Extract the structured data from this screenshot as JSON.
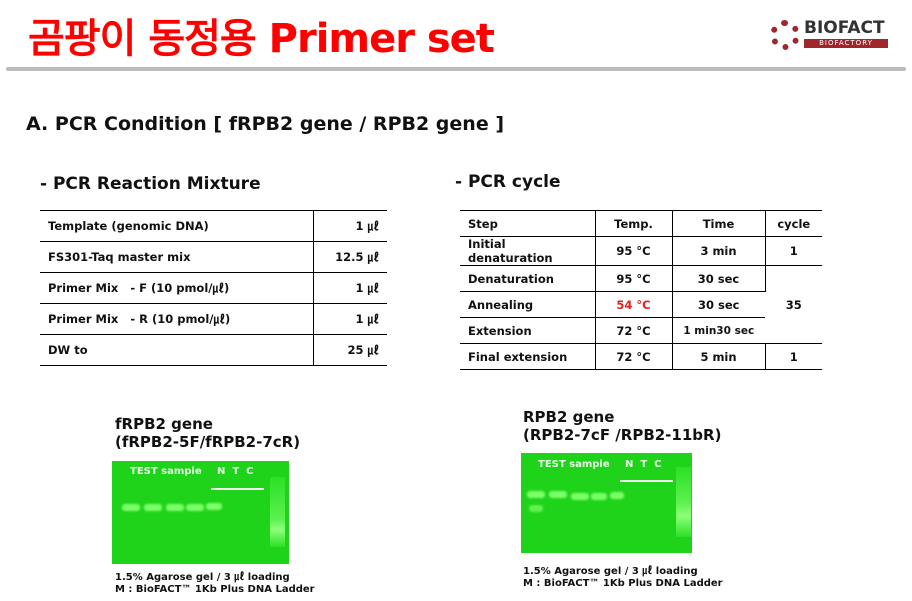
{
  "title": "곰팡이 동정용 Primer set",
  "logo": {
    "name": "BIOFACT",
    "sub": "BIOFACTORY"
  },
  "section": "A. PCR Condition [ fRPB2 gene / RPB2 gene ]",
  "mixture": {
    "heading": "- PCR Reaction Mixture",
    "rows": [
      [
        "Template (genomic DNA)",
        "1 ㎕"
      ],
      [
        "FS301-Taq master mix",
        "12.5 ㎕"
      ],
      [
        "Primer Mix   - F (10 pmol/㎕)",
        "1 ㎕"
      ],
      [
        "Primer Mix   - R (10 pmol/㎕)",
        "1 ㎕"
      ],
      [
        "DW to",
        "25 ㎕"
      ]
    ]
  },
  "cycle": {
    "heading": "- PCR cycle",
    "headers": [
      "Step",
      "Temp.",
      "Time",
      "cycle"
    ],
    "rows": [
      [
        "Initial denaturation",
        "95 °C",
        "3 min",
        "1"
      ],
      [
        "Denaturation",
        "95 °C",
        "30 sec",
        "35"
      ],
      [
        "Annealing",
        "54 °C",
        "30 sec",
        ""
      ],
      [
        "Extension",
        "72 °C",
        "1 min30 sec",
        ""
      ],
      [
        "Final extension",
        "72 °C",
        "5 min",
        "1"
      ]
    ],
    "highlight_color": "#e8201c"
  },
  "gel1": {
    "title": "fRPB2 gene",
    "primers": "(fRPB2-5F/fRPB2-7cR)",
    "test_label": "TEST sample",
    "ntc_label": "N  T  C",
    "caption1": "1.5% Agarose gel / 3 ㎕ loading",
    "caption2": "M : BioFACT™ 1Kb Plus DNA Ladder"
  },
  "gel2": {
    "title": "RPB2 gene",
    "primers": "(RPB2-7cF /RPB2-11bR)",
    "test_label": "TEST sample",
    "ntc_label": "N  T  C",
    "caption1": "1.5% Agarose gel / 3 ㎕ loading",
    "caption2": "M : BioFACT™ 1Kb Plus DNA Ladder"
  }
}
